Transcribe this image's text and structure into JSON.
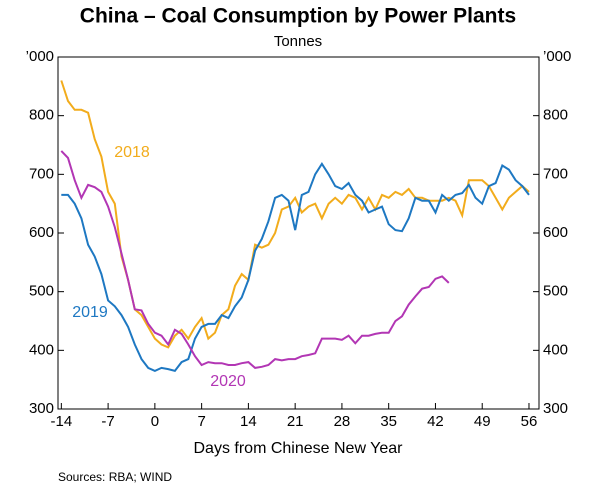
{
  "chart_data": {
    "type": "line",
    "title": "China – Coal Consumption by Power Plants",
    "subtitle": "Tonnes",
    "x_label": "Days from Chinese New Year",
    "source": "Sources:  RBA; WIND",
    "xlim": [
      -14.5,
      57.5
    ],
    "xticks": [
      -14,
      -7,
      0,
      7,
      14,
      21,
      28,
      35,
      42,
      49,
      56
    ],
    "ylim": [
      300,
      900
    ],
    "yticks": [
      300,
      400,
      500,
      600,
      700,
      800,
      {
        "value": 900,
        "label": "’000"
      }
    ],
    "x": [
      -14,
      -13,
      -12,
      -11,
      -10,
      -9,
      -8,
      -7,
      -6,
      -5,
      -4,
      -3,
      -2,
      -1,
      0,
      1,
      2,
      3,
      4,
      5,
      6,
      7,
      8,
      9,
      10,
      11,
      12,
      13,
      14,
      15,
      16,
      17,
      18,
      19,
      20,
      21,
      22,
      23,
      24,
      25,
      26,
      27,
      28,
      29,
      30,
      31,
      32,
      33,
      34,
      35,
      36,
      37,
      38,
      39,
      40,
      41,
      42,
      43,
      44,
      45,
      46,
      47,
      48,
      49,
      50,
      51,
      52,
      53,
      54,
      55,
      56
    ],
    "series": [
      {
        "name": "2018",
        "color": "#f2ac1c",
        "values": [
          860,
          825,
          810,
          810,
          805,
          760,
          730,
          670,
          650,
          560,
          520,
          470,
          460,
          440,
          420,
          410,
          405,
          425,
          435,
          420,
          440,
          455,
          420,
          430,
          460,
          470,
          510,
          530,
          520,
          580,
          575,
          580,
          600,
          640,
          645,
          660,
          635,
          645,
          650,
          625,
          650,
          660,
          650,
          665,
          660,
          640,
          660,
          640,
          665,
          660,
          670,
          665,
          675,
          660,
          660,
          655,
          655,
          655,
          660,
          655,
          630,
          690,
          690,
          690,
          680,
          660,
          640,
          660,
          670,
          680,
          670
        ]
      },
      {
        "name": "2019",
        "color": "#1e78c2",
        "values": [
          665,
          665,
          650,
          625,
          580,
          560,
          530,
          485,
          475,
          460,
          440,
          410,
          385,
          370,
          365,
          370,
          368,
          365,
          380,
          385,
          420,
          440,
          445,
          445,
          460,
          455,
          475,
          490,
          520,
          570,
          590,
          620,
          660,
          665,
          655,
          605,
          665,
          670,
          700,
          718,
          700,
          680,
          675,
          685,
          665,
          655,
          635,
          640,
          645,
          615,
          605,
          603,
          625,
          660,
          655,
          655,
          635,
          665,
          655,
          665,
          668,
          682,
          660,
          650,
          680,
          685,
          715,
          708,
          690,
          680,
          665
        ]
      },
      {
        "name": "2020",
        "color": "#b236b4",
        "values": [
          740,
          728,
          690,
          660,
          682,
          678,
          670,
          645,
          610,
          565,
          520,
          470,
          468,
          445,
          430,
          425,
          410,
          435,
          428,
          410,
          390,
          375,
          380,
          378,
          378,
          375,
          375,
          378,
          380,
          370,
          372,
          375,
          385,
          383,
          385,
          385,
          390,
          392,
          395,
          420,
          420,
          420,
          418,
          425,
          412,
          425,
          425,
          428,
          430,
          430,
          450,
          458,
          478,
          492,
          505,
          508,
          522,
          526,
          515,
          null,
          null,
          null,
          null,
          null,
          null,
          null,
          null,
          null,
          null,
          null,
          null
        ]
      }
    ]
  }
}
